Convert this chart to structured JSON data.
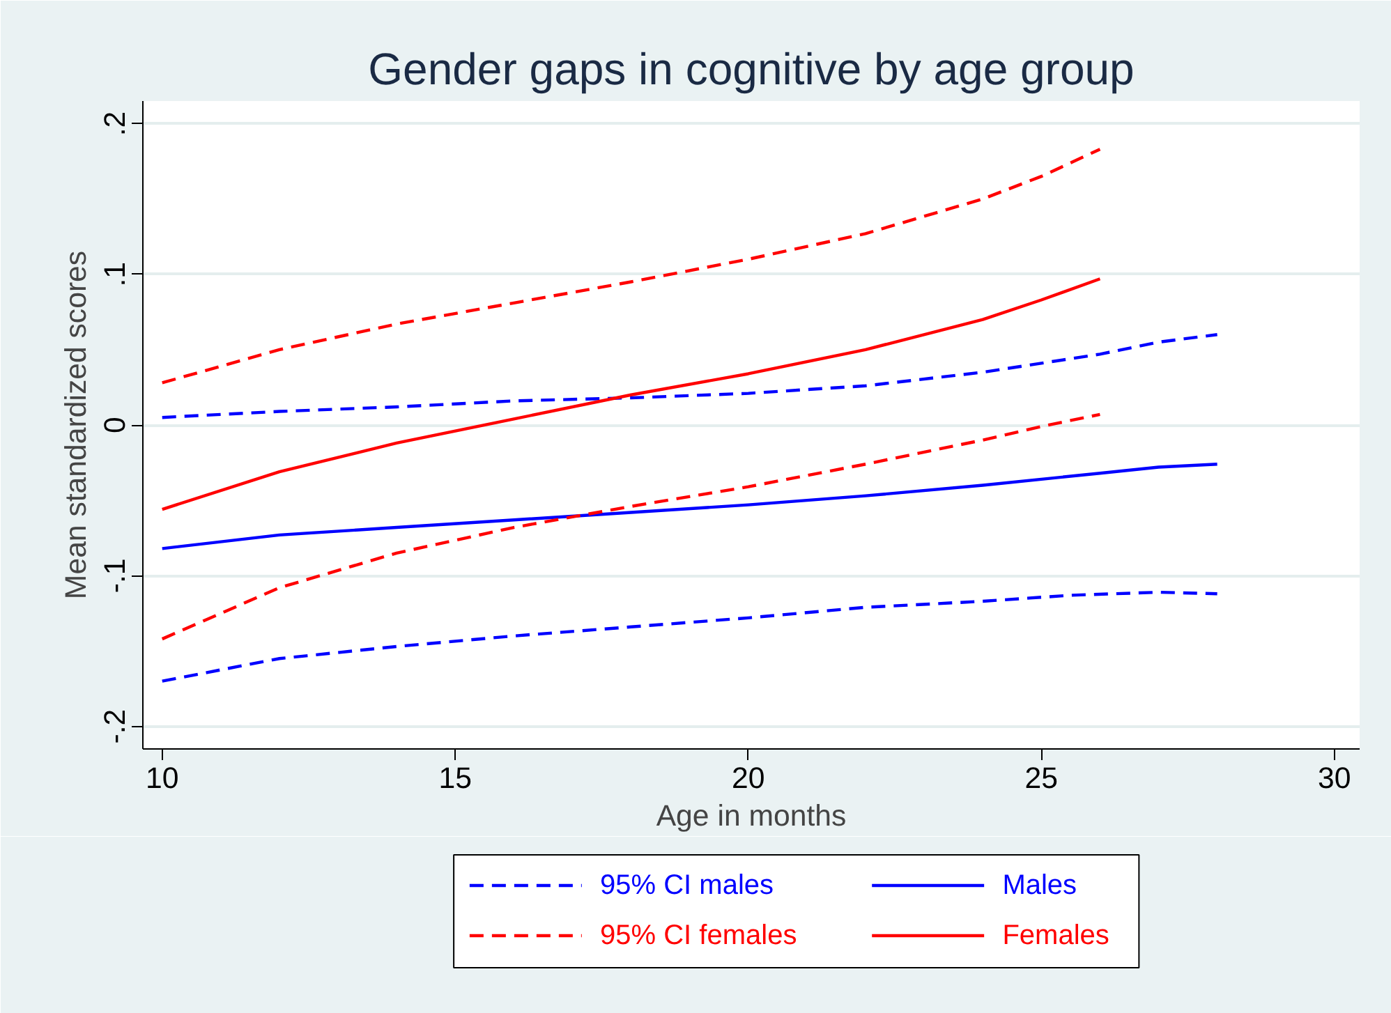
{
  "chart_data": {
    "type": "line",
    "title": "Gender gaps in cognitive by age group",
    "xlabel": "Age in months",
    "ylabel": "Mean standardized scores",
    "xlim": [
      9.67,
      30.43
    ],
    "xticks": [
      10,
      15,
      20,
      25,
      30
    ],
    "ylim": [
      -0.215,
      0.215
    ],
    "yticks": [
      {
        "value": -0.2,
        "label": "-.2"
      },
      {
        "value": -0.1,
        "label": "-.1"
      },
      {
        "value": 0,
        "label": "0"
      },
      {
        "value": 0.1,
        "label": ".1"
      },
      {
        "value": 0.2,
        "label": ".2"
      }
    ],
    "grid": "y",
    "legend": "bottom",
    "series": [
      {
        "name": "95% CI males",
        "color": "#0000ff",
        "line_style": "dashed",
        "x": [
          10,
          12,
          14,
          16,
          18,
          20,
          22,
          24,
          26,
          27,
          28
        ],
        "values": [
          0.005,
          0.009,
          0.012,
          0.016,
          0.018,
          0.021,
          0.026,
          0.035,
          0.047,
          0.055,
          0.06
        ]
      },
      {
        "name": "Males",
        "color": "#0000ff",
        "line_style": "solid",
        "x": [
          10,
          12,
          14,
          16,
          18,
          20,
          22,
          24,
          26,
          27,
          28
        ],
        "values": [
          -0.082,
          -0.073,
          -0.068,
          -0.063,
          -0.058,
          -0.053,
          -0.047,
          -0.04,
          -0.032,
          -0.028,
          -0.026
        ]
      },
      {
        "name": "95% CI females",
        "color": "#ff0000",
        "line_style": "dashed",
        "x": [
          10,
          12,
          14,
          16,
          18,
          20,
          22,
          24,
          25,
          26
        ],
        "values": [
          0.028,
          0.05,
          0.067,
          0.081,
          0.095,
          0.11,
          0.127,
          0.15,
          0.165,
          0.183
        ]
      },
      {
        "name": "Females",
        "color": "#ff0000",
        "line_style": "solid",
        "x": [
          10,
          12,
          14,
          16,
          18,
          20,
          22,
          24,
          25,
          26
        ],
        "values": [
          -0.056,
          -0.031,
          -0.012,
          0.004,
          0.02,
          0.034,
          0.05,
          0.07,
          0.083,
          0.097
        ]
      },
      {
        "color": "#0000ff",
        "line_style": "dashed",
        "x": [
          10,
          12,
          14,
          16,
          18,
          20,
          22,
          24,
          25.5,
          27,
          28
        ],
        "values": [
          -0.17,
          -0.155,
          -0.147,
          -0.14,
          -0.134,
          -0.128,
          -0.121,
          -0.117,
          -0.113,
          -0.111,
          -0.112
        ]
      },
      {
        "color": "#ff0000",
        "line_style": "dashed",
        "x": [
          10,
          12,
          14,
          16,
          18,
          20,
          22,
          24,
          25,
          26
        ],
        "values": [
          -0.142,
          -0.108,
          -0.085,
          -0.068,
          -0.054,
          -0.041,
          -0.026,
          -0.01,
          -0.001,
          0.007
        ]
      }
    ]
  }
}
